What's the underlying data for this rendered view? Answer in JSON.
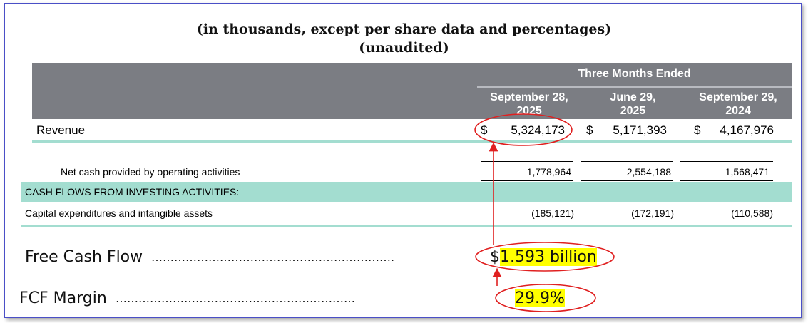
{
  "header": {
    "line1": "(in thousands, except per share data and percentages)",
    "line2": "(unaudited)"
  },
  "table": {
    "group_header": "Three Months Ended",
    "columns": [
      {
        "line1": "September 28,",
        "line2": "2025"
      },
      {
        "line1": "June 29,",
        "line2": "2025"
      },
      {
        "line1": "September 29,",
        "line2": "2024"
      }
    ],
    "revenue": {
      "label": "Revenue",
      "currency": "$",
      "values": [
        "5,324,173",
        "5,171,393",
        "4,167,976"
      ]
    },
    "operating_cash": {
      "label": "Net cash provided by operating activities",
      "values": [
        "1,778,964",
        "2,554,188",
        "1,568,471"
      ]
    },
    "investing_section": "CASH FLOWS FROM INVESTING ACTIVITIES:",
    "capex": {
      "label": "Capital expenditures and intangible assets",
      "values": [
        "(185,121)",
        "(172,191)",
        "(110,588)"
      ]
    }
  },
  "annotations": {
    "fcf_label": "Free Cash Flow",
    "fcf_dots": "……………………………………………………….",
    "fcf_currency": "$",
    "fcf_value": "1.593 billion",
    "margin_label": "FCF Margin",
    "margin_dots": "………………………………………………………",
    "margin_value": "29.9%",
    "highlight_color": "#ffff00",
    "ellipse_color": "#e02020"
  }
}
